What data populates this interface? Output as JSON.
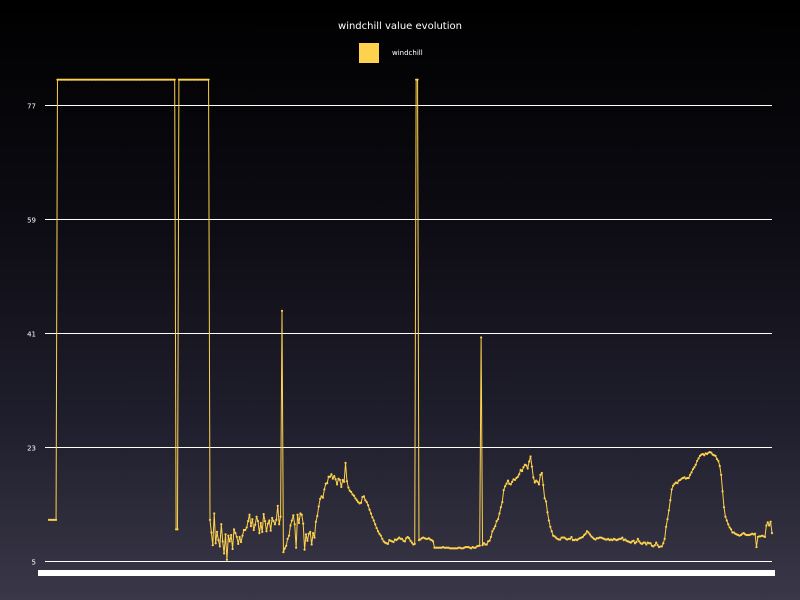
{
  "chart_data": {
    "type": "line",
    "title": "windchill value evolution",
    "xlabel": "",
    "ylabel": "",
    "ylim": [
      5,
      81.5
    ],
    "yticks": [
      5,
      23,
      41,
      59,
      77
    ],
    "grid": true,
    "legend_position": "top",
    "series_color": "#ffd24d",
    "series": [
      {
        "name": "windchill",
        "values": [
          11.5,
          11.5,
          11.5,
          11.5,
          11.5,
          11.5,
          81,
          81,
          81,
          81,
          81,
          81,
          81,
          81,
          81,
          81,
          81,
          81,
          81,
          81,
          81,
          81,
          81,
          81,
          81,
          81,
          81,
          81,
          81,
          81,
          81,
          81,
          81,
          81,
          81,
          81,
          81,
          81,
          81,
          81,
          81,
          81,
          81,
          81,
          81,
          81,
          81,
          81,
          81,
          81,
          81,
          81,
          81,
          81,
          81,
          81,
          81,
          81,
          81,
          81,
          81,
          81,
          81,
          81,
          81,
          81,
          81,
          81,
          81,
          81,
          81,
          81,
          81,
          81,
          81,
          81,
          81,
          81,
          81,
          81,
          81,
          81,
          81,
          81,
          81,
          81,
          81,
          81,
          81,
          81,
          10,
          10,
          81,
          81,
          81,
          81,
          81,
          81,
          81,
          81,
          81,
          81,
          81,
          81,
          81,
          81,
          81,
          81,
          81,
          81,
          81,
          81,
          81,
          81,
          11.5,
          9.5,
          7.5,
          12.5,
          7.8,
          9.6,
          8.3,
          7.3,
          10.8,
          8.1,
          6.2,
          9.2,
          5.2,
          9,
          8.1,
          9.1,
          6.9,
          10,
          9.4,
          8.8,
          7.7,
          8.8,
          8,
          9,
          9.9,
          9.9,
          10.3,
          11.3,
          12.3,
          10.5,
          11.6,
          9.9,
          10.7,
          12,
          11.3,
          9.4,
          11,
          9.6,
          12.4,
          11.3,
          9.7,
          10.9,
          11.4,
          9.8,
          11.8,
          11.3,
          10.8,
          11.5,
          13.7,
          10.8,
          12,
          44.5,
          6.4,
          7,
          7.4,
          8.5,
          9,
          10.6,
          11.4,
          12.2,
          10.8,
          7.1,
          12.3,
          11,
          12.5,
          12.3,
          10.9,
          6.8,
          9.2,
          8.2,
          9.3,
          9.6,
          7.6,
          9.4,
          8.7,
          11.2,
          12.1,
          13.6,
          14.8,
          15.2,
          15,
          16.3,
          17.2,
          17.3,
          18.3,
          18.3,
          18.7,
          18,
          18.4,
          17.9,
          17.1,
          18,
          17.8,
          16.7,
          17.8,
          17.5,
          20.5,
          17.6,
          16.6,
          16.1,
          15.9,
          15.5,
          15.3,
          14.9,
          14.6,
          14.3,
          14.1,
          14.2,
          15.1,
          15.2,
          14.6,
          14.3,
          13.8,
          13.1,
          12.5,
          11.9,
          11.4,
          10.8,
          10.2,
          9.7,
          9.3,
          9,
          8.5,
          8.1,
          7.9,
          7.8,
          7.7,
          8.3,
          8.2,
          8.1,
          8,
          8.4,
          8.3,
          8.5,
          8.7,
          8.5,
          8.5,
          8.2,
          8.1,
          8.6,
          8.8,
          8.6,
          8.2,
          7.9,
          7.6,
          7.7,
          81,
          81,
          8.3,
          8.4,
          8.6,
          8.7,
          8.6,
          8.5,
          8.5,
          8.6,
          8.4,
          8.3,
          8.1,
          7.1,
          7.1,
          7.1,
          7.1,
          7.1,
          7.1,
          7.2,
          7.1,
          7.1,
          7.1,
          7.1,
          7,
          7,
          7,
          7,
          7,
          7,
          7.1,
          7.1,
          7,
          7,
          7.1,
          7.2,
          7.2,
          7.2,
          7.1,
          7,
          7.2,
          7.1,
          7.1,
          7.3,
          7.4,
          7.4,
          40.3,
          7.5,
          7.8,
          7.6,
          7.6,
          8.1,
          8.2,
          8.8,
          9.7,
          10.1,
          10.5,
          11.3,
          11.6,
          12.5,
          13.5,
          14.3,
          16.2,
          16.8,
          17.2,
          17.7,
          17.2,
          17.1,
          17.5,
          17.9,
          17.8,
          18.1,
          18.3,
          18.7,
          19.4,
          19.2,
          19.8,
          20.2,
          20.1,
          19.6,
          20.7,
          21.5,
          19.9,
          18.2,
          17.4,
          17.7,
          17.5,
          17.1,
          18.6,
          18.9,
          17,
          14.9,
          14.4,
          12.7,
          11.4,
          10.4,
          9.7,
          9,
          8.9,
          8.7,
          8.5,
          8.4,
          8.4,
          8.7,
          8.7,
          8.7,
          8.5,
          8.4,
          8.5,
          8.5,
          8.8,
          8.3,
          8.3,
          8.4,
          8.3,
          8.5,
          8.6,
          8.7,
          8.8,
          9.1,
          9.3,
          9.7,
          9.5,
          9.2,
          8.9,
          8.7,
          8.5,
          8.4,
          8.6,
          8.6,
          8.7,
          8.7,
          8.6,
          8.5,
          8.4,
          8.4,
          8.5,
          8.3,
          8.4,
          8.3,
          8.5,
          8.4,
          8.3,
          8.4,
          8.5,
          8.5,
          8.7,
          8.3,
          8.4,
          8.2,
          8.1,
          8,
          7.9,
          8.1,
          8.2,
          7.8,
          8,
          8.5,
          8.1,
          7.8,
          7.7,
          7.9,
          7.9,
          7.6,
          7.9,
          7.8,
          7.8,
          7.4,
          7.3,
          7.5,
          7.9,
          7.5,
          7.2,
          7.3,
          7.3,
          7.8,
          8.5,
          10.4,
          11.6,
          13,
          14.6,
          16.3,
          16.9,
          17.2,
          17.4,
          17.3,
          17.7,
          17.8,
          18,
          18.1,
          18.2,
          18,
          18.1,
          18.1,
          18.6,
          19,
          19.5,
          19.8,
          20.2,
          20.8,
          21.2,
          21.6,
          21.8,
          21.9,
          21.7,
          22,
          21.9,
          22.1,
          22.2,
          22.1,
          21.8,
          21.7,
          21.6,
          21.1,
          20.8,
          20,
          18.6,
          16,
          13.5,
          12,
          11.4,
          10.8,
          10.3,
          10,
          9.5,
          9.5,
          9.3,
          9.2,
          9.1,
          9,
          9.1,
          9.3,
          9.4,
          9.2,
          9.1,
          9.1,
          9.1,
          9.2,
          9.3,
          9.2,
          9.3,
          7.2,
          8.8,
          8.9,
          8.9,
          9,
          8.9,
          8.8,
          10.6,
          11.1,
          10.6,
          11.2,
          9.4
        ]
      }
    ]
  }
}
